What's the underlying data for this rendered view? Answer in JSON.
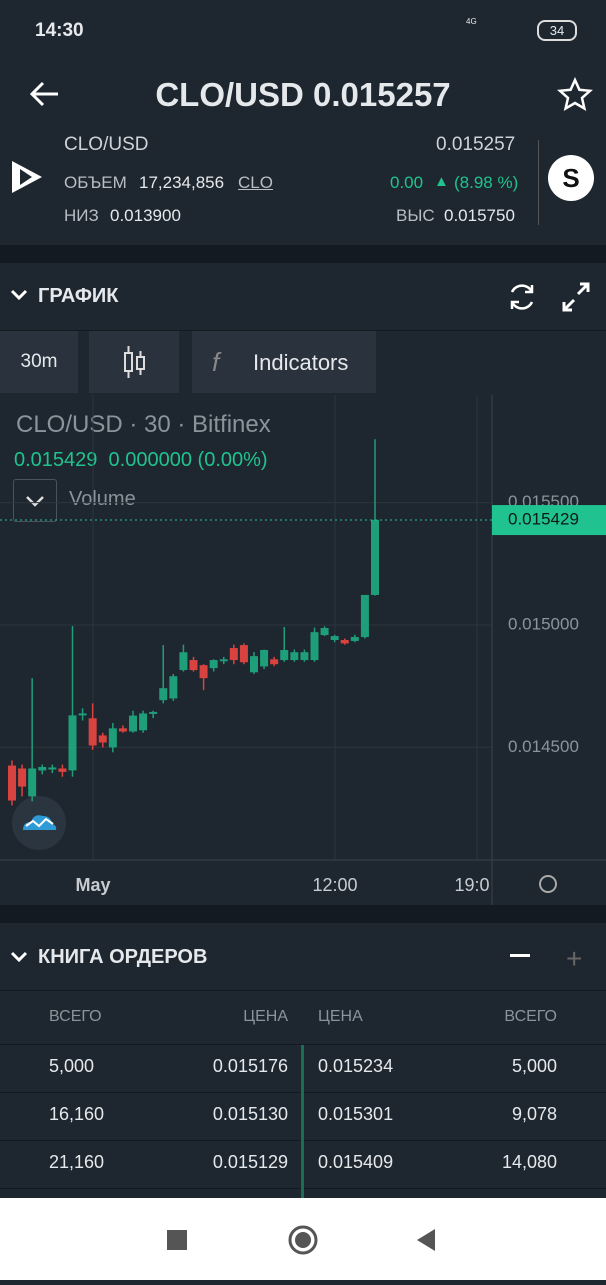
{
  "status_bar": {
    "time": "14:30",
    "network": "4G",
    "battery": "34"
  },
  "header": {
    "title": "CLO/USD 0.015257"
  },
  "ticker": {
    "pair": "CLO/USD",
    "price": "0.015257",
    "volume_label": "ОБЪЕМ",
    "volume": "17,234,856",
    "volume_unit": "CLO",
    "change": "0.00",
    "change_pct": "(8.98 %)",
    "low_label": "НИЗ",
    "low": "0.013900",
    "high_label": "ВЫС",
    "high": "0.015750"
  },
  "chart_section": {
    "title": "ГРАФИК",
    "interval": "30m",
    "indicators": "Indicators"
  },
  "chart_data": {
    "type": "candlestick",
    "legend": {
      "symbol": "CLO/USD",
      "interval": "30",
      "exchange": "Bitfinex",
      "last": "0.015429",
      "change": "0.000000",
      "change_pct": "(0.00%)",
      "volume_label": "Volume"
    },
    "x_labels": [
      "May",
      "12:00",
      "19:0"
    ],
    "ylim": [
      0.01404,
      0.01594
    ],
    "yticks": [
      {
        "value": 0.0145,
        "label": "0.014500"
      },
      {
        "value": 0.015,
        "label": "0.015000"
      },
      {
        "value": 0.0155,
        "label": "0.015500"
      }
    ],
    "last_price": {
      "value": 0.015429,
      "label": "0.015429"
    },
    "colors": {
      "up": "#1f9e7a",
      "down": "#d9433f"
    },
    "candles": [
      [
        0.014426,
        0.014447,
        0.014263,
        0.014283
      ],
      [
        0.014414,
        0.01443,
        0.0143,
        0.01434
      ],
      [
        0.0143,
        0.014783,
        0.01428,
        0.014414
      ],
      [
        0.014406,
        0.01443,
        0.01439,
        0.01442
      ],
      [
        0.01441,
        0.01443,
        0.014395,
        0.014418
      ],
      [
        0.014414,
        0.01443,
        0.01438,
        0.0144
      ],
      [
        0.014406,
        0.014996,
        0.01438,
        0.014631
      ],
      [
        0.014631,
        0.01466,
        0.01461,
        0.014639
      ],
      [
        0.014619,
        0.01468,
        0.01449,
        0.014508
      ],
      [
        0.014549,
        0.01456,
        0.0145,
        0.01452
      ],
      [
        0.0145,
        0.0146,
        0.01448,
        0.014578
      ],
      [
        0.014578,
        0.01459,
        0.01456,
        0.014565
      ],
      [
        0.014565,
        0.01465,
        0.01456,
        0.01463
      ],
      [
        0.01457,
        0.01465,
        0.01456,
        0.014639
      ],
      [
        0.014639,
        0.01465,
        0.01462,
        0.014645
      ],
      [
        0.014693,
        0.014918,
        0.01468,
        0.014742
      ],
      [
        0.0147,
        0.0148,
        0.01469,
        0.014791
      ],
      [
        0.014816,
        0.01492,
        0.01481,
        0.014889
      ],
      [
        0.014857,
        0.01487,
        0.01481,
        0.014816
      ],
      [
        0.014836,
        0.01484,
        0.014734,
        0.014783
      ],
      [
        0.014824,
        0.01486,
        0.01481,
        0.014857
      ],
      [
        0.014857,
        0.01487,
        0.01484,
        0.01486
      ],
      [
        0.014906,
        0.01492,
        0.01484,
        0.014857
      ],
      [
        0.014918,
        0.014925,
        0.01484,
        0.014848
      ],
      [
        0.014807,
        0.01489,
        0.0148,
        0.014873
      ],
      [
        0.014831,
        0.0149,
        0.01482,
        0.014898
      ],
      [
        0.01486,
        0.01487,
        0.014832,
        0.01484
      ],
      [
        0.014857,
        0.014992,
        0.01485,
        0.014898
      ],
      [
        0.014857,
        0.0149,
        0.01485,
        0.014889
      ],
      [
        0.014857,
        0.0149,
        0.01485,
        0.014889
      ],
      [
        0.014857,
        0.01499,
        0.01485,
        0.014971
      ],
      [
        0.014959,
        0.014995,
        0.014955,
        0.014988
      ],
      [
        0.014939,
        0.01496,
        0.01493,
        0.014955
      ],
      [
        0.014939,
        0.014945,
        0.01492,
        0.014925
      ],
      [
        0.014935,
        0.01496,
        0.01493,
        0.014951
      ],
      [
        0.014951,
        0.015123,
        0.014945,
        0.015123
      ],
      [
        0.015123,
        0.015759,
        0.01512,
        0.01543
      ]
    ]
  },
  "order_book": {
    "title": "КНИГА ОРДЕРОВ",
    "headers": [
      "ВСЕГО",
      "ЦЕНА",
      "ЦЕНА",
      "ВСЕГО"
    ],
    "rows": [
      [
        "5,000",
        "0.015176",
        "0.015234",
        "5,000"
      ],
      [
        "16,160",
        "0.015130",
        "0.015301",
        "9,078"
      ],
      [
        "21,160",
        "0.015129",
        "0.015409",
        "14,080"
      ]
    ]
  }
}
